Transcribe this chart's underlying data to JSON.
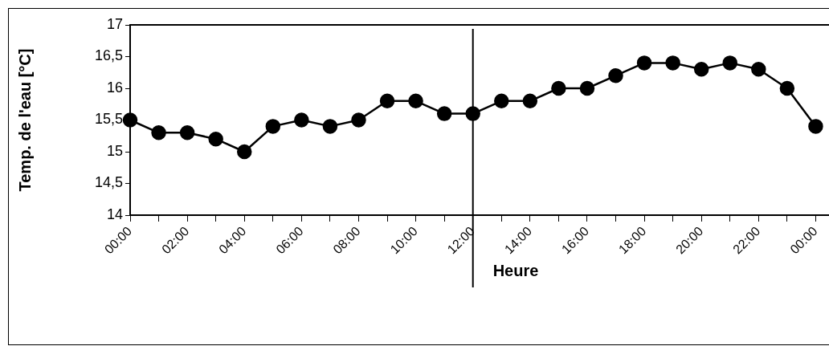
{
  "chart_data": {
    "type": "line",
    "xlabel": "Heure",
    "ylabel": "Temp. de l'eau [°C]",
    "categories": [
      "00:00",
      null,
      "02:00",
      null,
      "04:00",
      null,
      "06:00",
      null,
      "08:00",
      null,
      "10:00",
      null,
      "12:00",
      null,
      "14:00",
      null,
      "16:00",
      null,
      "18:00",
      null,
      "20:00",
      null,
      "22:00",
      null,
      "00:00"
    ],
    "series": [
      {
        "color": "#000000",
        "values": [
          15.5,
          15.3,
          15.3,
          15.2,
          15.0,
          15.4,
          15.5,
          15.4,
          15.5,
          15.8,
          15.8,
          15.6,
          15.6,
          15.8,
          15.8,
          16.0,
          16.0,
          16.2,
          16.4,
          16.4,
          16.3,
          16.4,
          16.3,
          16.0,
          15.4
        ]
      }
    ],
    "ylim": [
      14,
      17
    ],
    "yticks": [
      14,
      {
        "value": 14.5,
        "label": "14,5"
      },
      15,
      {
        "value": 15.5,
        "label": "15,5"
      },
      16,
      {
        "value": 16.5,
        "label": "16,5"
      },
      17
    ],
    "ref_lines": [
      {
        "axis": "x",
        "value": "12:00",
        "color": "#000000"
      }
    ],
    "grid": false,
    "legend": false,
    "marker": "circle",
    "line_style": "solid"
  }
}
